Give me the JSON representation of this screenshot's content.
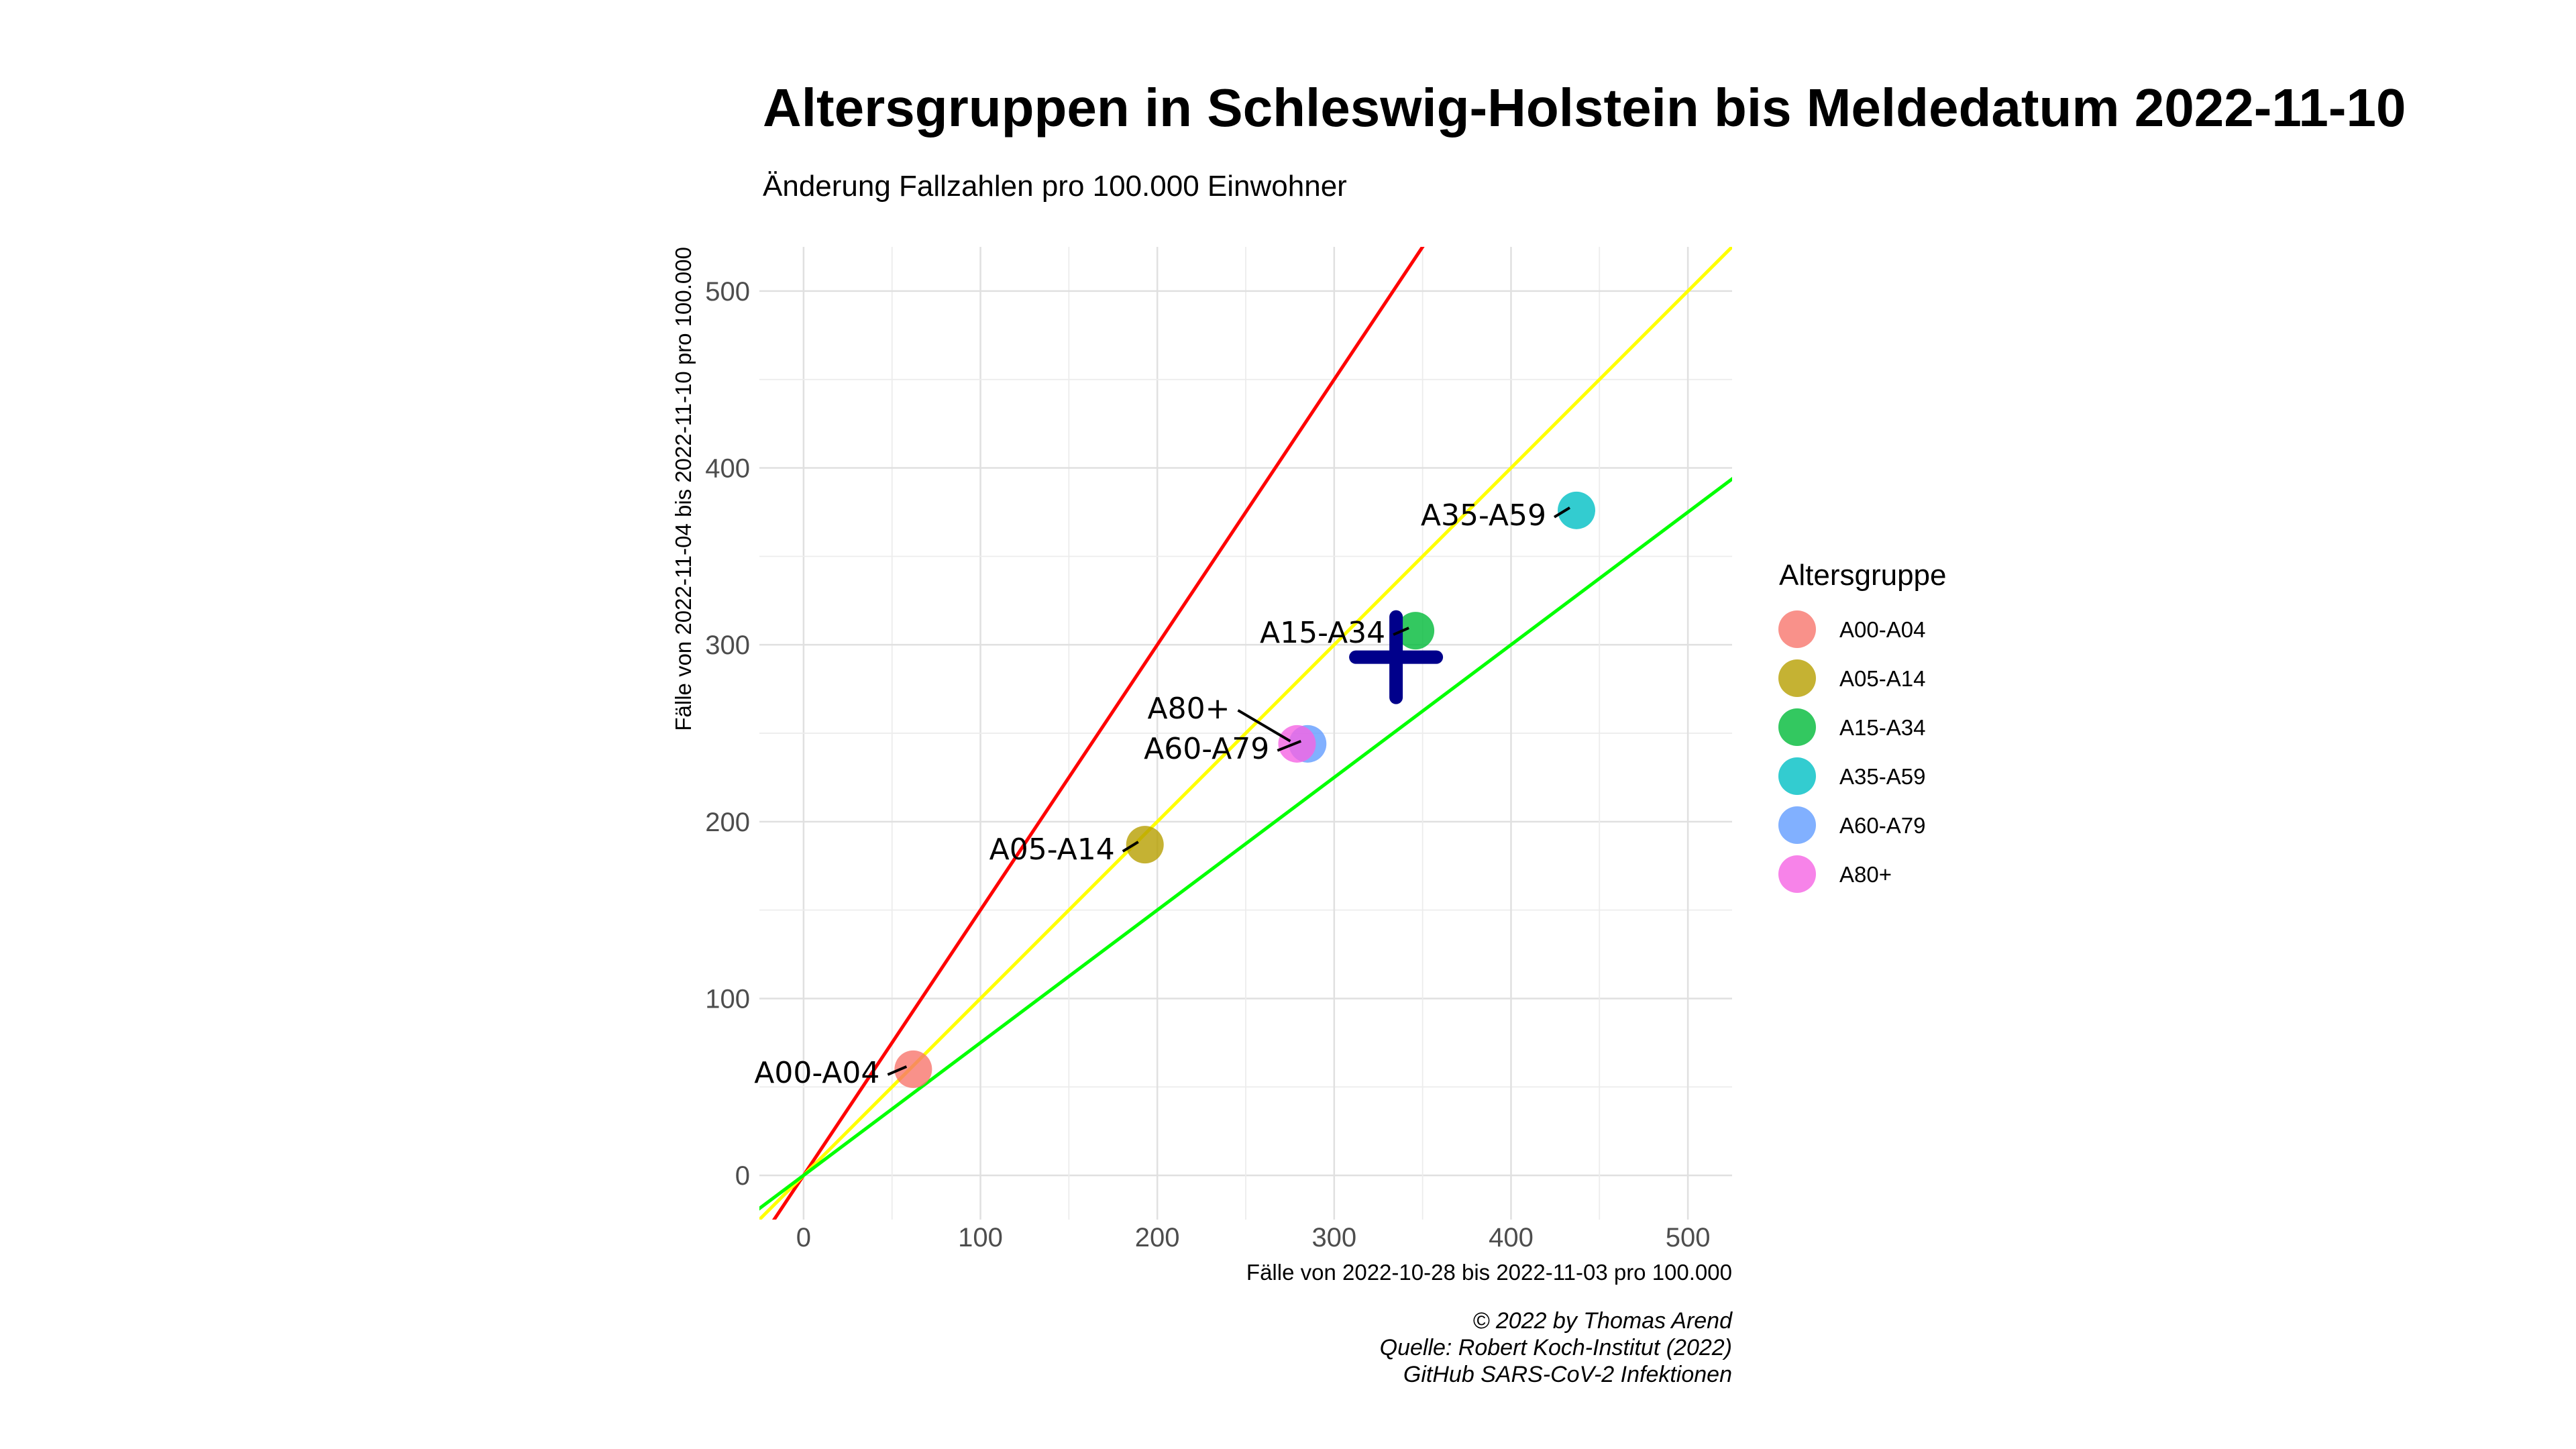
{
  "chart_data": {
    "type": "scatter",
    "title": "Altersgruppen in Schleswig-Holstein bis Meldedatum 2022-11-10",
    "subtitle": "Änderung Fallzahlen pro 100.000 Einwohner",
    "xlabel": "Fälle von 2022-10-28 bis 2022-11-03 pro 100.000",
    "ylabel": "Fälle von 2022-11-04 bis 2022-11-10 pro 100.000",
    "xlim": [
      -25,
      525
    ],
    "ylim": [
      -25,
      525
    ],
    "xticks": [
      "0",
      "100",
      "200",
      "300",
      "400",
      "500"
    ],
    "yticks": [
      "0",
      "100",
      "200",
      "300",
      "400",
      "500"
    ],
    "grid": true,
    "legend_title": "Altersgruppe",
    "legend_position": "right",
    "series": [
      {
        "name": "A00-A04",
        "x": 62,
        "y": 60,
        "color": "#f8766d"
      },
      {
        "name": "A05-A14",
        "x": 193,
        "y": 187,
        "color": "#b79f00"
      },
      {
        "name": "A15-A34",
        "x": 346,
        "y": 308,
        "color": "#00ba38"
      },
      {
        "name": "A35-A59",
        "x": 437,
        "y": 376,
        "color": "#00bfc4"
      },
      {
        "name": "A60-A79",
        "x": 285,
        "y": 244,
        "color": "#619cff"
      },
      {
        "name": "A80+",
        "x": 279,
        "y": 244,
        "color": "#f564e3"
      }
    ],
    "overall_point": {
      "x": 335,
      "y": 293,
      "color": "#00008b",
      "marker": "plus"
    },
    "reference_lines": [
      {
        "slope": 1.5,
        "color": "#ff0000"
      },
      {
        "slope": 1.0,
        "color": "#ffff00"
      },
      {
        "slope": 0.75,
        "color": "#00ff00"
      }
    ]
  },
  "caption": [
    "© 2022 by Thomas Arend",
    "Quelle: Robert Koch-Institut (2022)",
    "GitHub SARS-CoV-2 Infektionen"
  ]
}
